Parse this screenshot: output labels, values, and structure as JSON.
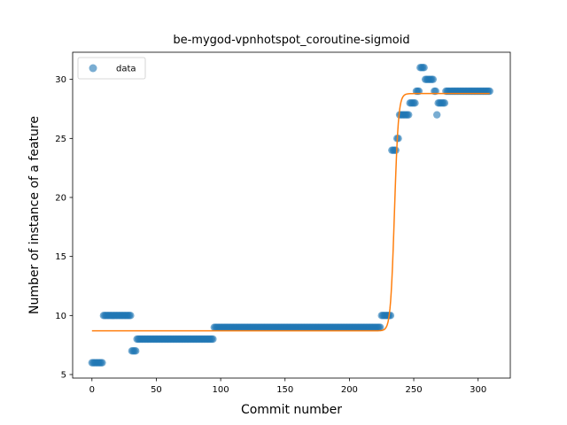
{
  "chart_data": {
    "type": "scatter",
    "title": "be-mygod-vpnhotspot_coroutine-sigmoid",
    "xlabel": "Commit number",
    "ylabel": "Number of instance of a feature",
    "xlim": [
      -15,
      325
    ],
    "ylim": [
      4.7,
      32.3
    ],
    "xticks": [
      0,
      50,
      100,
      150,
      200,
      250,
      300
    ],
    "yticks": [
      5,
      10,
      15,
      20,
      25,
      30
    ],
    "legend": {
      "placement": "top-left",
      "entries": [
        "data"
      ]
    },
    "colors": {
      "data": "#1f77b4",
      "fit": "#ff7f0e"
    },
    "series": [
      {
        "name": "data",
        "kind": "points",
        "segments": [
          {
            "x_start": 0,
            "x_end": 8,
            "y": 6
          },
          {
            "x_start": 9,
            "x_end": 30,
            "y": 10
          },
          {
            "x_start": 31,
            "x_end": 34,
            "y": 7
          },
          {
            "x_start": 35,
            "x_end": 94,
            "y": 8
          },
          {
            "x_start": 95,
            "x_end": 224,
            "y": 9
          },
          {
            "x_start": 225,
            "x_end": 232,
            "y": 10
          },
          {
            "x_start": 233,
            "x_end": 236,
            "y": 24
          },
          {
            "x_start": 237,
            "x_end": 238,
            "y": 25
          },
          {
            "x_start": 239,
            "x_end": 246,
            "y": 27
          },
          {
            "x_start": 247,
            "x_end": 251,
            "y": 28
          },
          {
            "x_start": 252,
            "x_end": 254,
            "y": 29
          },
          {
            "x_start": 255,
            "x_end": 258,
            "y": 31
          },
          {
            "x_start": 259,
            "x_end": 265,
            "y": 30
          },
          {
            "x_start": 266,
            "x_end": 267,
            "y": 29
          },
          {
            "x_start": 268,
            "x_end": 268,
            "y": 27
          },
          {
            "x_start": 269,
            "x_end": 274,
            "y": 28
          },
          {
            "x_start": 275,
            "x_end": 309,
            "y": 29
          }
        ]
      },
      {
        "kind": "sigmoid-fit",
        "x_range": [
          0,
          309
        ],
        "lower": 8.7,
        "upper": 28.8,
        "midpoint": 235,
        "steepness": 0.65
      }
    ]
  }
}
